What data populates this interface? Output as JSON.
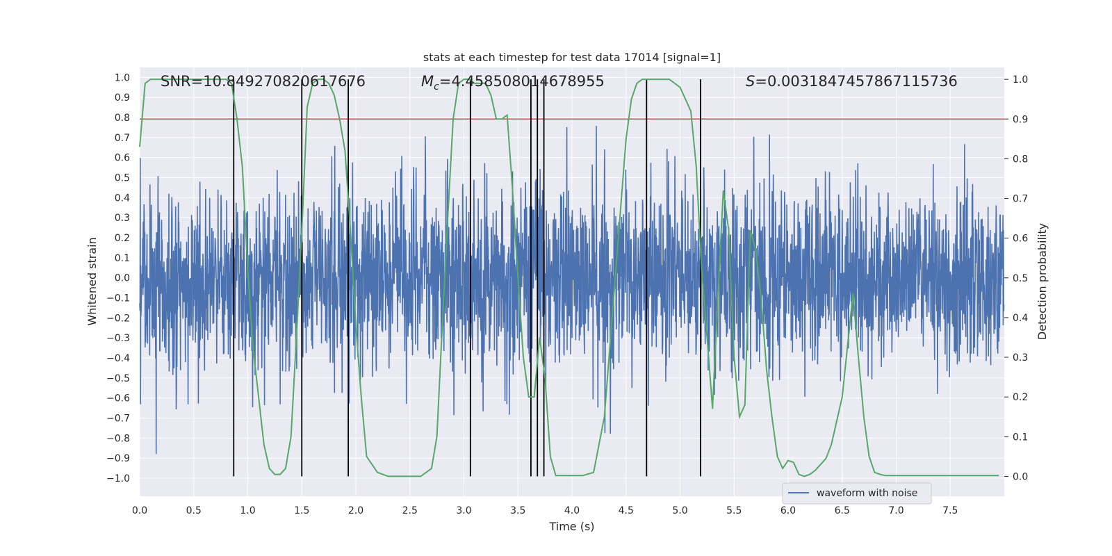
{
  "chart_data": {
    "type": "line",
    "title": "stats at each timestep for test data 17014 [signal=1]",
    "xlabel": "Time (s)",
    "ylabel_left": "Whitened strain",
    "ylabel_right": "Detection probability",
    "xlim": [
      0,
      8.0
    ],
    "ylim_left": [
      -1.09,
      1.05
    ],
    "ylim_right": [
      -0.05,
      1.03
    ],
    "x_ticks": [
      0.0,
      0.5,
      1.0,
      1.5,
      2.0,
      2.5,
      3.0,
      3.5,
      4.0,
      4.5,
      5.0,
      5.5,
      6.0,
      6.5,
      7.0,
      7.5
    ],
    "x_tick_labels": [
      "0.0",
      "0.5",
      "1.0",
      "1.5",
      "2.0",
      "2.5",
      "3.0",
      "3.5",
      "4.0",
      "4.5",
      "5.0",
      "5.5",
      "6.0",
      "6.5",
      "7.0",
      "7.5"
    ],
    "y_left_ticks": [
      1.0,
      0.9,
      0.8,
      0.7,
      0.6,
      0.5,
      0.4,
      0.3,
      0.2,
      0.1,
      0.0,
      -0.1,
      -0.2,
      -0.3,
      -0.4,
      -0.5,
      -0.6,
      -0.7,
      -0.8,
      -0.9,
      -1.0
    ],
    "y_left_tick_labels": [
      "1.0",
      "0.9",
      "0.8",
      "0.7",
      "0.6",
      "0.5",
      "0.4",
      "0.3",
      "0.2",
      "0.1",
      "0.0",
      "−0.1",
      "−0.2",
      "−0.3",
      "−0.4",
      "−0.5",
      "−0.6",
      "−0.7",
      "−0.8",
      "−0.9",
      "−1.0"
    ],
    "y_right_ticks": [
      1.0,
      0.9,
      0.8,
      0.7,
      0.6,
      0.5,
      0.4,
      0.3,
      0.2,
      0.1,
      0.0
    ],
    "y_right_tick_labels": [
      "1.0",
      "0.9",
      "0.8",
      "0.7",
      "0.6",
      "0.5",
      "0.4",
      "0.3",
      "0.2",
      "0.1",
      "0.0"
    ],
    "annotations": {
      "snr": "SNR=10.849270820617676",
      "mc_symbol": "M",
      "mc_sub": "c",
      "mc_value": "=4.458508014678955",
      "s_symbol": "S",
      "s_value": "=0.0031847457867115736"
    },
    "legend": {
      "label": "waveform with noise",
      "position": "lower-right"
    },
    "threshold": 0.9,
    "vertical_lines": [
      0.87,
      1.5,
      1.93,
      3.06,
      3.62,
      3.68,
      3.74,
      4.69,
      5.19
    ],
    "waveform": {
      "amplitude_range": [
        -1.0,
        1.0
      ],
      "sample_step": 0.0025,
      "seed": 17014
    },
    "detection_probability": {
      "x": [
        0.0,
        0.05,
        0.1,
        0.2,
        0.3,
        0.4,
        0.5,
        0.6,
        0.7,
        0.8,
        0.85,
        0.9,
        0.95,
        1.0,
        1.05,
        1.1,
        1.15,
        1.2,
        1.25,
        1.3,
        1.35,
        1.4,
        1.45,
        1.5,
        1.55,
        1.6,
        1.65,
        1.7,
        1.75,
        1.8,
        1.85,
        1.9,
        1.95,
        2.0,
        2.05,
        2.1,
        2.15,
        2.2,
        2.3,
        2.4,
        2.5,
        2.6,
        2.7,
        2.75,
        2.8,
        2.85,
        2.9,
        2.95,
        3.0,
        3.05,
        3.1,
        3.15,
        3.2,
        3.25,
        3.3,
        3.35,
        3.4,
        3.45,
        3.5,
        3.55,
        3.6,
        3.65,
        3.7,
        3.75,
        3.8,
        3.85,
        3.9,
        3.95,
        4.0,
        4.05,
        4.1,
        4.2,
        4.3,
        4.4,
        4.5,
        4.55,
        4.6,
        4.65,
        4.7,
        4.75,
        4.8,
        4.9,
        5.0,
        5.1,
        5.15,
        5.2,
        5.25,
        5.3,
        5.35,
        5.4,
        5.45,
        5.5,
        5.55,
        5.6,
        5.65,
        5.7,
        5.75,
        5.8,
        5.85,
        5.9,
        5.95,
        6.0,
        6.05,
        6.1,
        6.15,
        6.2,
        6.25,
        6.3,
        6.35,
        6.4,
        6.5,
        6.6,
        6.65,
        6.7,
        6.75,
        6.8,
        6.85,
        6.9,
        7.0,
        7.2,
        7.5,
        7.8,
        7.95
      ],
      "y": [
        0.83,
        0.99,
        1.0,
        1.0,
        1.0,
        1.0,
        1.0,
        1.0,
        1.0,
        1.0,
        0.99,
        0.9,
        0.78,
        0.52,
        0.32,
        0.2,
        0.08,
        0.02,
        0.005,
        0.005,
        0.02,
        0.1,
        0.35,
        0.62,
        0.93,
        0.99,
        1.0,
        1.0,
        0.99,
        0.96,
        0.9,
        0.82,
        0.62,
        0.38,
        0.2,
        0.05,
        0.03,
        0.01,
        0.0,
        0.0,
        0.0,
        0.0,
        0.02,
        0.1,
        0.38,
        0.65,
        0.9,
        0.99,
        1.0,
        1.0,
        0.99,
        0.99,
        0.99,
        0.96,
        0.9,
        0.9,
        0.91,
        0.72,
        0.5,
        0.3,
        0.2,
        0.2,
        0.35,
        0.25,
        0.05,
        0.002,
        0.002,
        0.002,
        0.002,
        0.002,
        0.002,
        0.01,
        0.15,
        0.5,
        0.85,
        0.95,
        0.99,
        1.0,
        1.0,
        1.0,
        1.0,
        1.0,
        0.98,
        0.92,
        0.78,
        0.52,
        0.35,
        0.17,
        0.45,
        0.72,
        0.62,
        0.3,
        0.15,
        0.18,
        0.62,
        0.57,
        0.45,
        0.27,
        0.15,
        0.05,
        0.02,
        0.04,
        0.035,
        0.005,
        0.0,
        0.005,
        0.015,
        0.03,
        0.045,
        0.08,
        0.2,
        0.46,
        0.3,
        0.15,
        0.05,
        0.01,
        0.005,
        0.002,
        0.002,
        0.002,
        0.002,
        0.002,
        0.002
      ]
    },
    "colors": {
      "background": "#eaeaf2",
      "grid": "#ffffff",
      "waveform": "#4c72b0",
      "probability": "#55a868",
      "threshold": "#c44e52",
      "vertical": "#000000",
      "text": "#262626"
    }
  }
}
